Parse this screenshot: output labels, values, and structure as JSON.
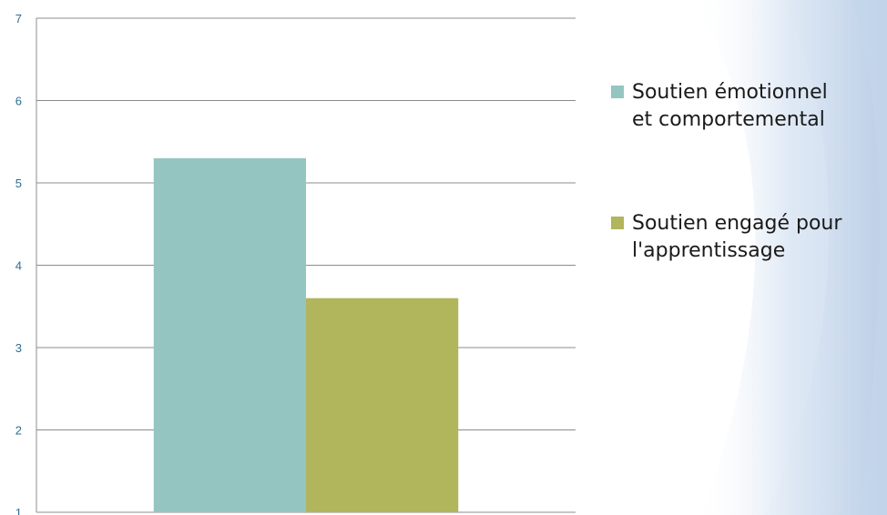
{
  "chart_data": {
    "type": "bar",
    "categories": [
      ""
    ],
    "series": [
      {
        "name": "Soutien émotionnel et comportemental",
        "values": [
          5.3
        ],
        "color": "#95c5c1"
      },
      {
        "name": "Soutien engagé pour l'apprentissage",
        "values": [
          3.6
        ],
        "color": "#b1b55b"
      }
    ],
    "ylim": [
      1,
      7
    ],
    "yticks": [
      1,
      2,
      3,
      4,
      5,
      6,
      7
    ],
    "grid": true,
    "legend": {
      "placement": "right",
      "entries": [
        {
          "lines": [
            "Soutien émotionnel",
            "et comportemental"
          ],
          "color": "#95c5c1"
        },
        {
          "lines": [
            "Soutien engagé pour",
            "l'apprentissage"
          ],
          "color": "#b1b55b"
        }
      ]
    },
    "title": "",
    "xlabel": "",
    "ylabel": ""
  }
}
